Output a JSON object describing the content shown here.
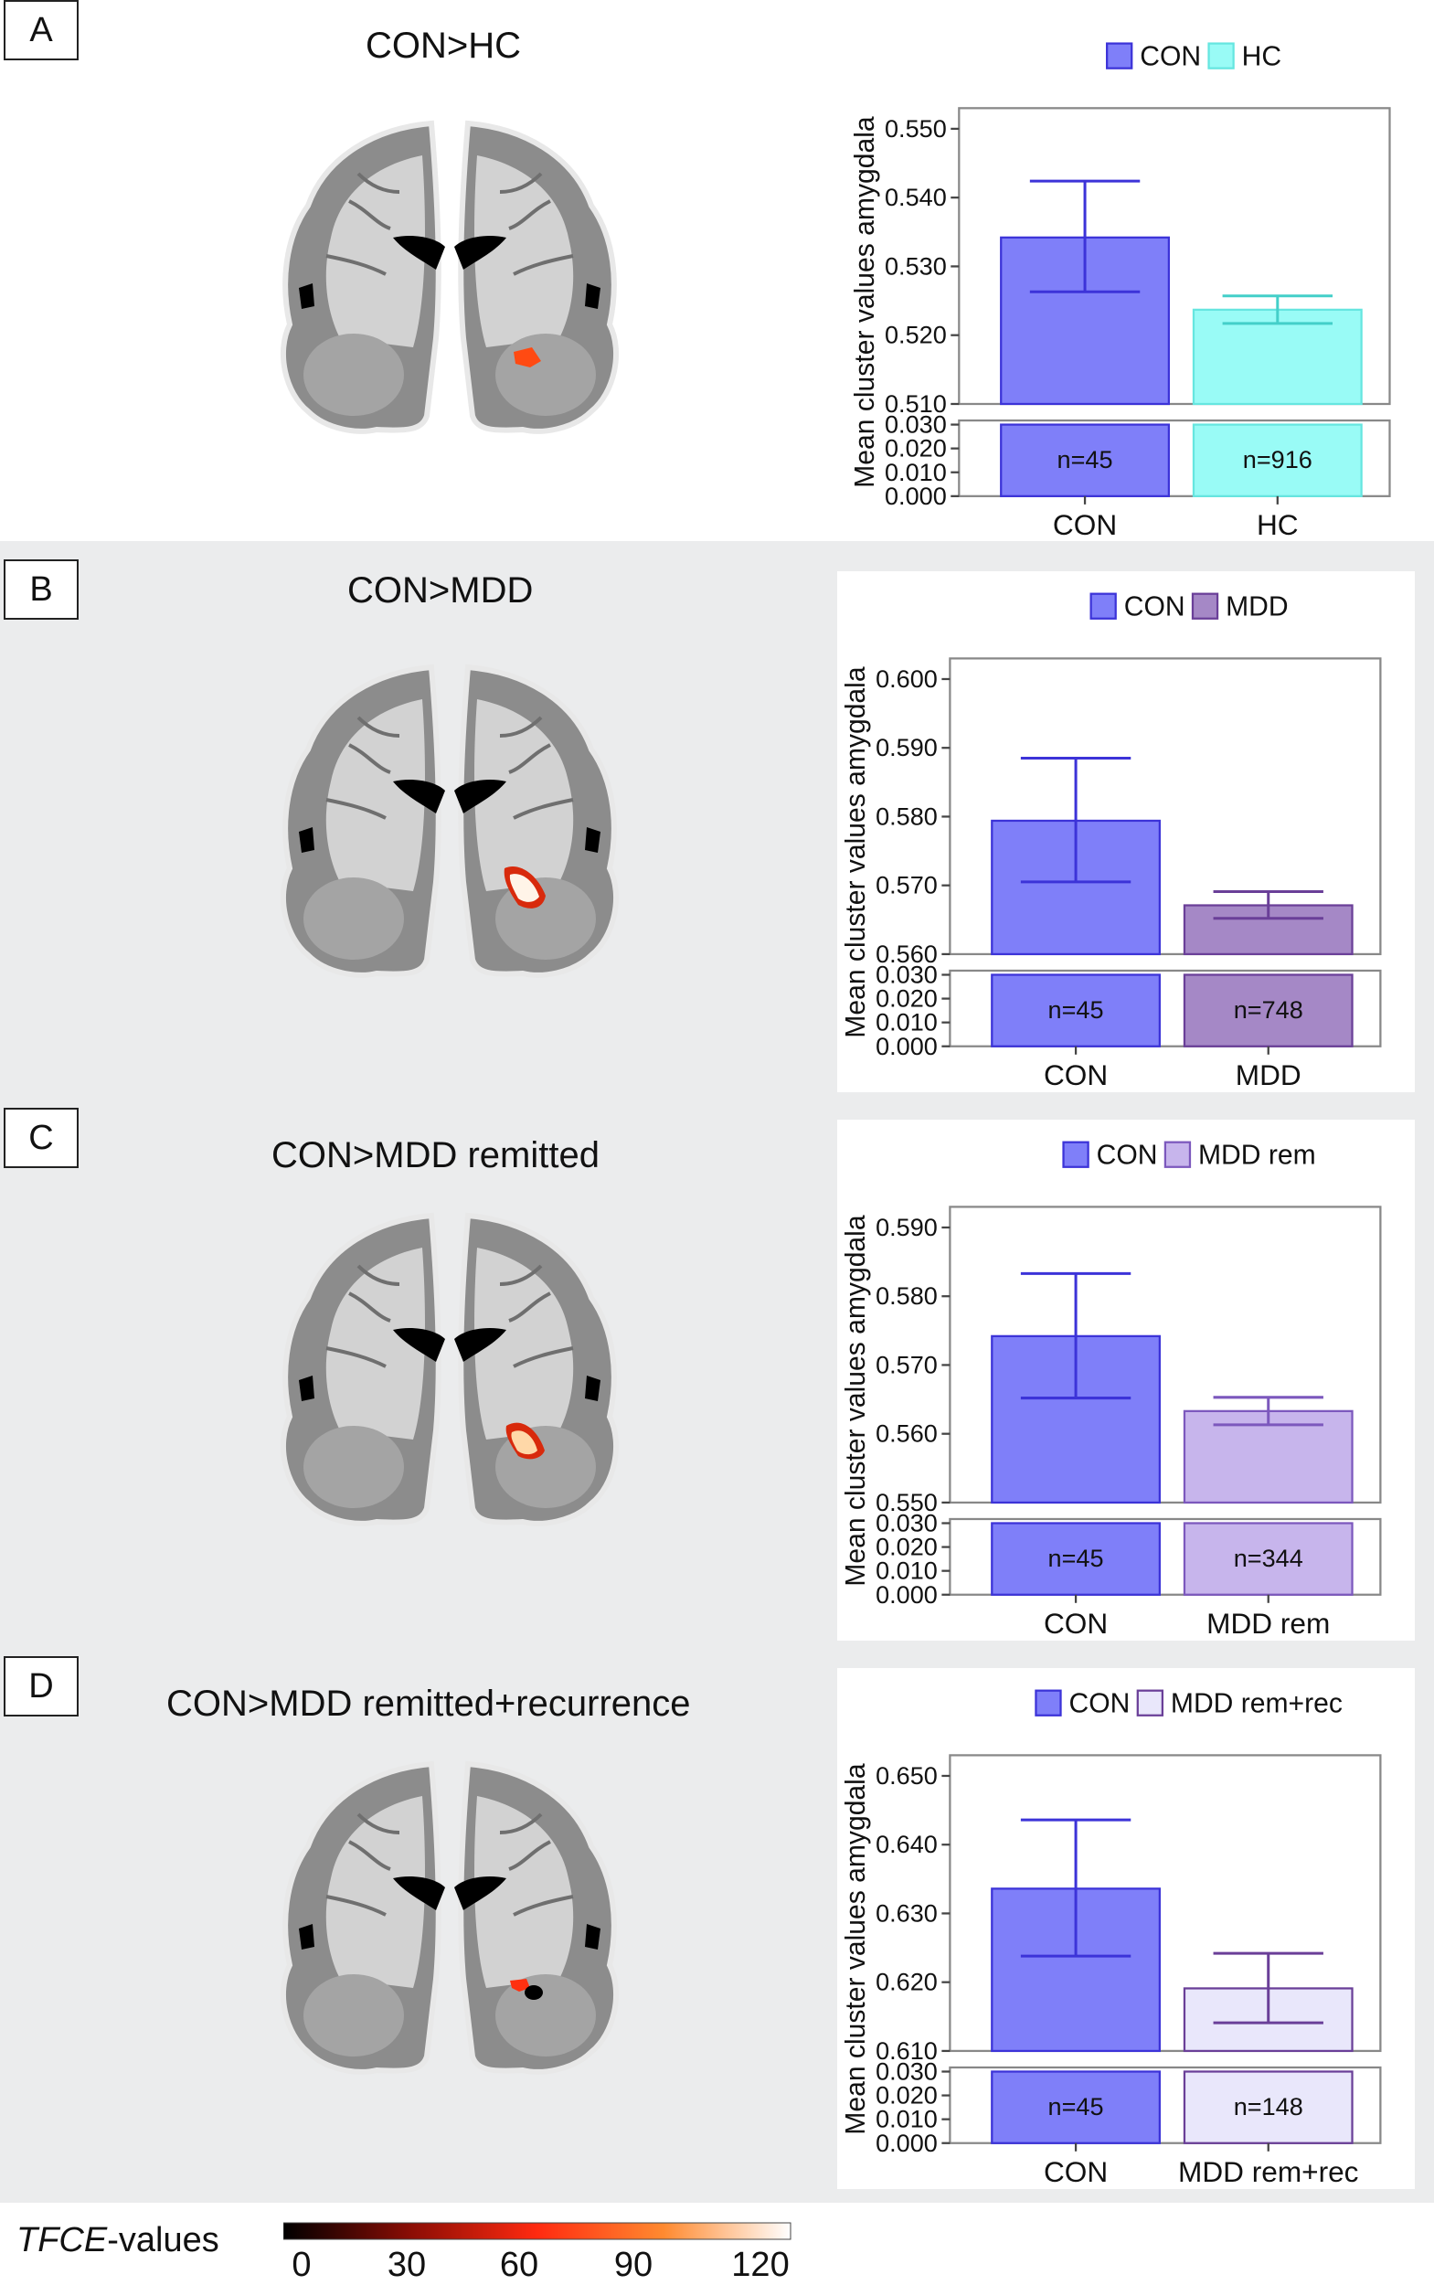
{
  "panels": [
    {
      "id": "A",
      "letter": "A",
      "title": "CON>HC",
      "chart_data": {
        "type": "bar",
        "categories": [
          "CON",
          "HC"
        ],
        "values": [
          0.5342,
          0.5237
        ],
        "error_low": [
          0.5263,
          0.5217
        ],
        "error_high": [
          0.5424,
          0.5257
        ],
        "n_labels": [
          "n=45",
          "n=916"
        ],
        "ylabel": "Mean cluster values amygdala",
        "ylim_upper": [
          0.51,
          0.55
        ],
        "yticks_upper": [
          "0.510",
          "0.520",
          "0.530",
          "0.540",
          "0.550"
        ],
        "ylim_lower": [
          0.0,
          0.03
        ],
        "yticks_lower": [
          "0.000",
          "0.010",
          "0.020",
          "0.030"
        ],
        "legend": [
          "CON",
          "HC"
        ],
        "legend_position": "top",
        "colors": {
          "fill": [
            "#7f7ff9",
            "#99fbf6"
          ],
          "stroke": [
            "#3c33d8",
            "#66e6e0"
          ],
          "error": [
            "#3c33d8",
            "#44cfc9"
          ]
        }
      }
    },
    {
      "id": "B",
      "letter": "B",
      "title": "CON>MDD",
      "chart_data": {
        "type": "bar",
        "categories": [
          "CON",
          "MDD"
        ],
        "values": [
          0.5794,
          0.5671
        ],
        "error_low": [
          0.5705,
          0.5652
        ],
        "error_high": [
          0.5885,
          0.5691
        ],
        "n_labels": [
          "n=45",
          "n=748"
        ],
        "ylabel": "Mean cluster values amygdala",
        "ylim_upper": [
          0.56,
          0.6
        ],
        "yticks_upper": [
          "0.560",
          "0.570",
          "0.580",
          "0.590",
          "0.600"
        ],
        "ylim_lower": [
          0.0,
          0.03
        ],
        "yticks_lower": [
          "0.000",
          "0.010",
          "0.020",
          "0.030"
        ],
        "legend": [
          "CON",
          "MDD"
        ],
        "legend_position": "top",
        "colors": {
          "fill": [
            "#7f7ff9",
            "#a588c6"
          ],
          "stroke": [
            "#3c33d8",
            "#6a3f98"
          ],
          "error": [
            "#3c33d8",
            "#6a3f98"
          ]
        }
      }
    },
    {
      "id": "C",
      "letter": "C",
      "title": "CON>MDD remitted",
      "chart_data": {
        "type": "bar",
        "categories": [
          "CON",
          "MDD rem"
        ],
        "values": [
          0.5742,
          0.5633
        ],
        "error_low": [
          0.5652,
          0.5613
        ],
        "error_high": [
          0.5833,
          0.5653
        ],
        "n_labels": [
          "n=45",
          "n=344"
        ],
        "ylabel": "Mean cluster values amygdala",
        "ylim_upper": [
          0.55,
          0.59
        ],
        "yticks_upper": [
          "0.550",
          "0.560",
          "0.570",
          "0.580",
          "0.590"
        ],
        "ylim_lower": [
          0.0,
          0.03
        ],
        "yticks_lower": [
          "0.000",
          "0.010",
          "0.020",
          "0.030"
        ],
        "legend": [
          "CON",
          "MDD rem"
        ],
        "legend_position": "top",
        "colors": {
          "fill": [
            "#7f7ff9",
            "#c7b5ec"
          ],
          "stroke": [
            "#3c33d8",
            "#7c58bd"
          ],
          "error": [
            "#3c33d8",
            "#7c58bd"
          ]
        }
      }
    },
    {
      "id": "D",
      "letter": "D",
      "title": "CON>MDD remitted+recurrence",
      "chart_data": {
        "type": "bar",
        "categories": [
          "CON",
          "MDD rem+rec"
        ],
        "values": [
          0.6336,
          0.6191
        ],
        "error_low": [
          0.6238,
          0.6141
        ],
        "error_high": [
          0.6436,
          0.6242
        ],
        "n_labels": [
          "n=45",
          "n=148"
        ],
        "ylabel": "Mean cluster values amygdala",
        "ylim_upper": [
          0.61,
          0.65
        ],
        "yticks_upper": [
          "0.610",
          "0.620",
          "0.630",
          "0.640",
          "0.650"
        ],
        "ylim_lower": [
          0.0,
          0.03
        ],
        "yticks_lower": [
          "0.000",
          "0.010",
          "0.020",
          "0.030"
        ],
        "legend": [
          "CON",
          "MDD rem+rec"
        ],
        "legend_position": "top",
        "colors": {
          "fill": [
            "#7f7ff9",
            "#e9e7fb"
          ],
          "stroke": [
            "#3c33d8",
            "#6a3f98"
          ],
          "error": [
            "#3c33d8",
            "#6a3f98"
          ]
        }
      }
    }
  ],
  "colorbar": {
    "label_italic": "TFCE",
    "label_rest": "-values",
    "ticks": [
      "0",
      "30",
      "60",
      "90",
      "120"
    ],
    "colors": [
      "#000000",
      "#8a0d05",
      "#ff2a10",
      "#ff8a30",
      "#ffffff"
    ]
  }
}
